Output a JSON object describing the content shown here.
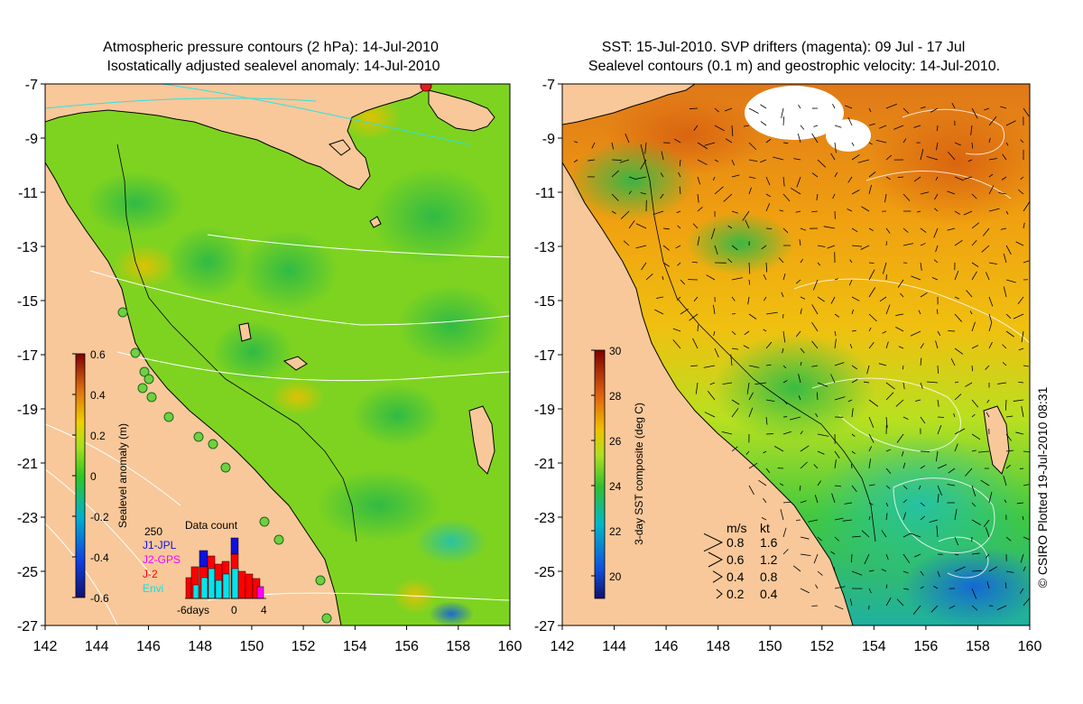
{
  "left_panel": {
    "title_line1": "Atmospheric pressure contours (2 hPa): 14-Jul-2010",
    "title_line2": "Isostatically adjusted sealevel anomaly: 14-Jul-2010",
    "lat_ticks": [
      "-7",
      "-9",
      "-11",
      "-13",
      "-15",
      "-17",
      "-19",
      "-21",
      "-23",
      "-25",
      "-27"
    ],
    "lon_ticks": [
      "142",
      "144",
      "146",
      "148",
      "150",
      "152",
      "154",
      "156",
      "158",
      "160"
    ],
    "colorbar": {
      "label": "Sealevel anomaly (m)",
      "ticks": [
        "0.6",
        "0.4",
        "0.2",
        "0",
        "-0.2",
        "-0.4",
        "-0.6"
      ],
      "range": [
        -0.6,
        0.6
      ]
    },
    "data_count": {
      "title": "Data count",
      "ymax_label": "250",
      "legend": [
        {
          "label": "J1-JPL",
          "color": "#1010e0"
        },
        {
          "label": "J2-GPS",
          "color": "#ff00ff"
        },
        {
          "label": "J-2",
          "color": "#ff0000"
        },
        {
          "label": "Envi",
          "color": "#00e5ee"
        }
      ],
      "x_labels": [
        "-6days",
        "0",
        "4"
      ]
    }
  },
  "right_panel": {
    "title_line1": "SST: 15-Jul-2010. SVP drifters (magenta): 09 Jul - 17 Jul",
    "title_line2": "Sealevel contours (0.1 m) and geostrophic velocity: 14-Jul-2010.",
    "lat_ticks": [
      "-7",
      "-9",
      "-11",
      "-13",
      "-15",
      "-17",
      "-19",
      "-21",
      "-23",
      "-25",
      "-27"
    ],
    "lon_ticks": [
      "142",
      "144",
      "146",
      "148",
      "150",
      "152",
      "154",
      "156",
      "158",
      "160"
    ],
    "colorbar": {
      "label": "3-day SST composite (deg C)",
      "ticks": [
        "30",
        "28",
        "26",
        "24",
        "22",
        "20"
      ],
      "range": [
        19,
        30
      ]
    },
    "velocity_legend": {
      "header_ms": "m/s",
      "header_kt": "kt",
      "rows": [
        {
          "ms": "0.8",
          "kt": "1.6"
        },
        {
          "ms": "0.6",
          "kt": "1.2"
        },
        {
          "ms": "0.4",
          "kt": "0.8"
        },
        {
          "ms": "0.2",
          "kt": "0.4"
        }
      ]
    }
  },
  "credit": "© CSIRO Plotted 19-Jul-2010 08:31",
  "colors": {
    "land": "#f8c89a",
    "sea_low": "#2ec820",
    "sea_high": "#f0b000",
    "sst_warm": "#e07010",
    "sst_cool": "#20c0a0"
  }
}
